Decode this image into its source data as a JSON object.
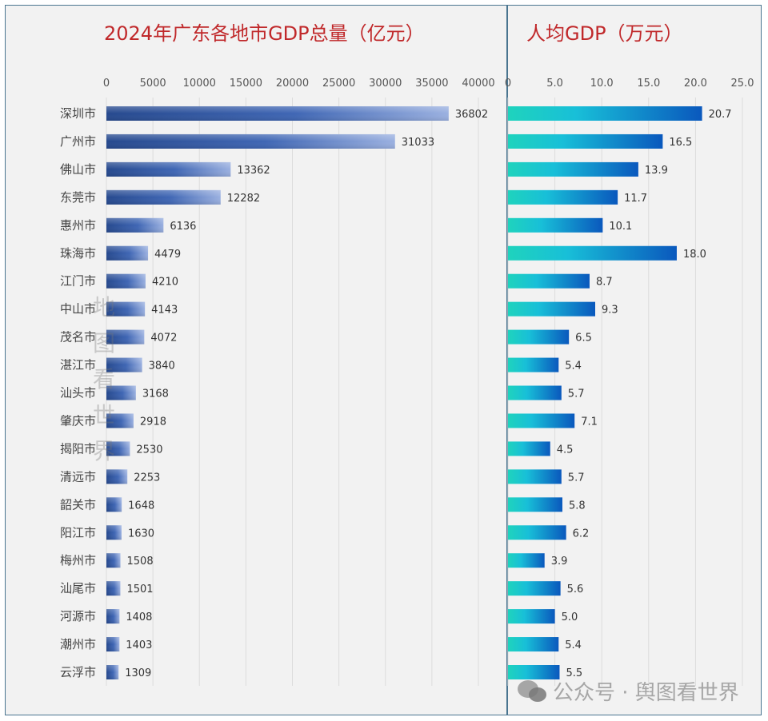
{
  "chart_data": [
    {
      "type": "bar",
      "orientation": "horizontal",
      "title": "2024年广东各地市GDP总量（亿元）",
      "categories": [
        "深圳市",
        "广州市",
        "佛山市",
        "东莞市",
        "惠州市",
        "珠海市",
        "江门市",
        "中山市",
        "茂名市",
        "湛江市",
        "汕头市",
        "肇庆市",
        "揭阳市",
        "清远市",
        "韶关市",
        "阳江市",
        "梅州市",
        "汕尾市",
        "河源市",
        "潮州市",
        "云浮市"
      ],
      "values": [
        36802,
        31033,
        13362,
        12282,
        6136,
        4479,
        4210,
        4143,
        4072,
        3840,
        3168,
        2918,
        2530,
        2253,
        1648,
        1630,
        1508,
        1501,
        1408,
        1403,
        1309
      ],
      "xlim": [
        0,
        40000
      ],
      "ticks": [
        "0",
        "5000",
        "10000",
        "15000",
        "20000",
        "25000",
        "30000",
        "35000",
        "40000"
      ],
      "tick_values": [
        0,
        5000,
        10000,
        15000,
        20000,
        25000,
        30000,
        35000,
        40000
      ],
      "grid": true,
      "colors": {
        "bar_dark": "#2a4f96",
        "bar_light": "#8fa8dc"
      }
    },
    {
      "type": "bar",
      "orientation": "horizontal",
      "title": "人均GDP（万元）",
      "values": [
        20.7,
        16.5,
        13.9,
        11.7,
        10.1,
        18.0,
        8.7,
        9.3,
        6.5,
        5.4,
        5.7,
        7.1,
        4.5,
        5.7,
        5.8,
        6.2,
        3.9,
        5.6,
        5.0,
        5.4,
        5.5
      ],
      "value_labels": [
        "20.7",
        "16.5",
        "13.9",
        "11.7",
        "10.1",
        "18.0",
        "8.7",
        "9.3",
        "6.5",
        "5.4",
        "5.7",
        "7.1",
        "4.5",
        "5.7",
        "5.8",
        "6.2",
        "3.9",
        "5.6",
        "5.0",
        "5.4",
        "5.5"
      ],
      "xlim": [
        0,
        25
      ],
      "ticks": [
        "0",
        "5.0",
        "10.0",
        "15.0",
        "20.0",
        "25.0"
      ],
      "tick_values": [
        0,
        5,
        10,
        15,
        20,
        25
      ],
      "grid": true,
      "colors": {
        "bar_start": "#1ed0c0",
        "bar_end": "#0a5cc0"
      }
    }
  ],
  "watermark": {
    "vertical": "地图看世界",
    "bottom": "公众号 · 舆图看世界",
    "icon": "wechat-icon"
  }
}
